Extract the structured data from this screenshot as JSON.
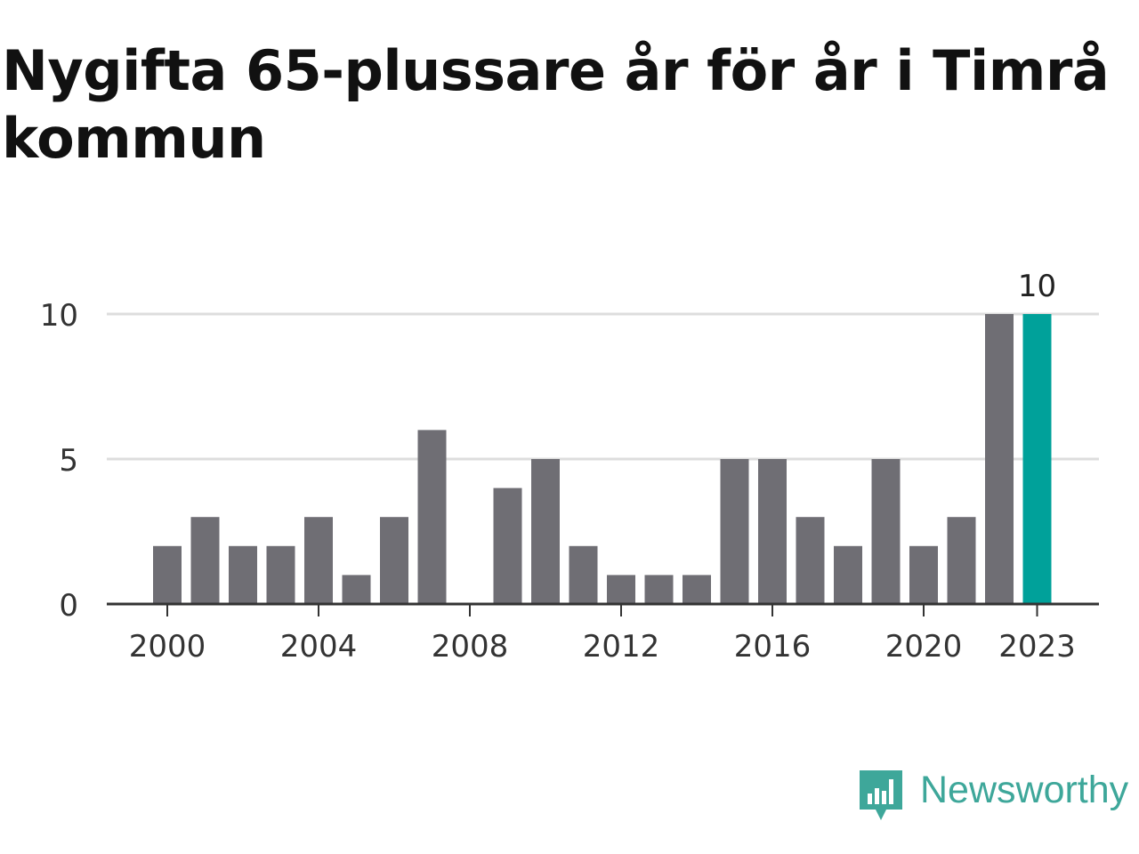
{
  "title": "Nygifta 65-plussare år för år i Timrå kommun",
  "brand": {
    "name": "Newsworthy",
    "icon": "newsworthy-logo-icon",
    "color": "#3ea79a"
  },
  "chart_data": {
    "type": "bar",
    "title": "Nygifta 65-plussare år för år i Timrå kommun",
    "xlabel": "",
    "ylabel": "",
    "categories": [
      "2000",
      "2001",
      "2002",
      "2003",
      "2004",
      "2005",
      "2006",
      "2007",
      "2008",
      "2009",
      "2010",
      "2011",
      "2012",
      "2013",
      "2014",
      "2015",
      "2016",
      "2017",
      "2018",
      "2019",
      "2020",
      "2021",
      "2022",
      "2023"
    ],
    "values": [
      2,
      3,
      2,
      2,
      3,
      1,
      3,
      6,
      0,
      4,
      5,
      2,
      1,
      1,
      1,
      5,
      5,
      3,
      2,
      5,
      2,
      3,
      10,
      10
    ],
    "x_tick_labels": [
      "2000",
      "2004",
      "2008",
      "2012",
      "2016",
      "2020",
      "2023"
    ],
    "y_ticks": [
      0,
      5,
      10
    ],
    "ylim": [
      0,
      10
    ],
    "grid": true,
    "highlight": {
      "category": "2023",
      "label": "10"
    },
    "colors": {
      "bar": "#6f6e74",
      "highlight": "#00a19a",
      "grid": "#dddddd",
      "axis": "#333333"
    }
  }
}
